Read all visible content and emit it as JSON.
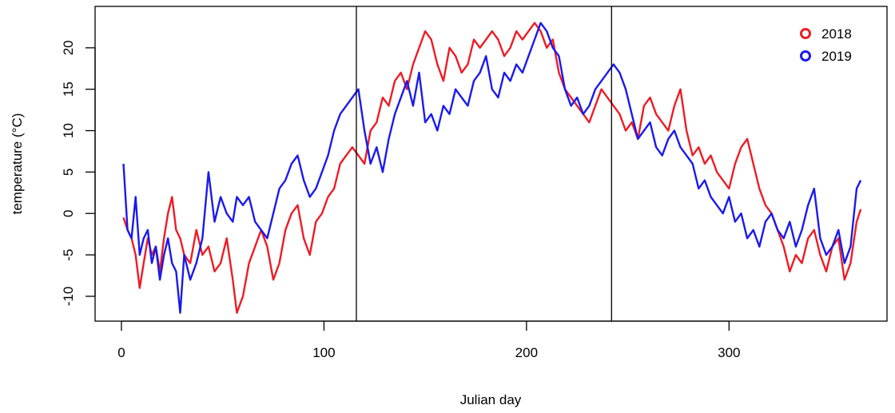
{
  "chart_data": {
    "type": "line",
    "xlabel": "Julian day",
    "ylabel": "temperature (°C)",
    "xlim": [
      -13,
      378
    ],
    "ylim": [
      -13,
      25
    ],
    "x_ticks": [
      0,
      100,
      200,
      300
    ],
    "y_ticks": [
      -10,
      -5,
      0,
      5,
      10,
      15,
      20
    ],
    "vlines": [
      116,
      242
    ],
    "legend": {
      "position": "top-right",
      "style": "circle"
    },
    "series": [
      {
        "name": "2018",
        "color": "#ee1c25",
        "x": [
          1,
          3,
          5,
          7,
          9,
          11,
          13,
          15,
          17,
          19,
          21,
          23,
          25,
          27,
          29,
          31,
          34,
          37,
          40,
          43,
          46,
          49,
          52,
          55,
          57,
          60,
          63,
          66,
          69,
          72,
          75,
          78,
          81,
          84,
          87,
          90,
          93,
          96,
          99,
          102,
          105,
          108,
          111,
          114,
          117,
          120,
          123,
          126,
          129,
          132,
          135,
          138,
          141,
          144,
          147,
          150,
          153,
          156,
          159,
          162,
          165,
          168,
          171,
          174,
          177,
          180,
          183,
          186,
          189,
          192,
          195,
          198,
          201,
          204,
          207,
          210,
          213,
          216,
          219,
          222,
          225,
          228,
          231,
          234,
          237,
          240,
          243,
          246,
          249,
          252,
          255,
          258,
          261,
          264,
          267,
          270,
          273,
          276,
          279,
          282,
          285,
          288,
          291,
          294,
          297,
          300,
          303,
          306,
          309,
          312,
          315,
          318,
          321,
          324,
          327,
          330,
          333,
          336,
          339,
          342,
          345,
          348,
          351,
          354,
          357,
          360,
          363,
          365
        ],
        "y": [
          -0.5,
          -2,
          -3,
          -5,
          -9,
          -6,
          -3,
          -5,
          -4,
          -7,
          -3,
          0,
          2,
          -2,
          -3,
          -5,
          -6,
          -2,
          -5,
          -4,
          -7,
          -6,
          -3,
          -8,
          -12,
          -10,
          -6,
          -4,
          -2,
          -4,
          -8,
          -6,
          -2,
          0,
          1,
          -3,
          -5,
          -1,
          0,
          2,
          3,
          6,
          7,
          8,
          7,
          6,
          10,
          11,
          14,
          13,
          16,
          17,
          15,
          18,
          20,
          22,
          21,
          18,
          16,
          20,
          19,
          17,
          18,
          21,
          20,
          21,
          22,
          21,
          19,
          20,
          22,
          21,
          22,
          23,
          22,
          20,
          21,
          17,
          15,
          14,
          13,
          12,
          11,
          13,
          15,
          14,
          13,
          12,
          10,
          11,
          9,
          13,
          14,
          12,
          11,
          10,
          13,
          15,
          10,
          7,
          8,
          6,
          7,
          5,
          4,
          3,
          6,
          8,
          9,
          6,
          3,
          1,
          0,
          -2,
          -4,
          -7,
          -5,
          -6,
          -3,
          -2,
          -5,
          -7,
          -4,
          -3,
          -8,
          -6,
          -1,
          0.5
        ]
      },
      {
        "name": "2019",
        "color": "#1a1aee",
        "x": [
          1,
          3,
          5,
          7,
          9,
          11,
          13,
          15,
          17,
          19,
          21,
          23,
          25,
          27,
          29,
          31,
          34,
          37,
          40,
          43,
          46,
          49,
          52,
          55,
          57,
          60,
          63,
          66,
          69,
          72,
          75,
          78,
          81,
          84,
          87,
          90,
          93,
          96,
          99,
          102,
          105,
          108,
          111,
          114,
          117,
          120,
          123,
          126,
          129,
          132,
          135,
          138,
          141,
          144,
          147,
          150,
          153,
          156,
          159,
          162,
          165,
          168,
          171,
          174,
          177,
          180,
          183,
          186,
          189,
          192,
          195,
          198,
          201,
          204,
          207,
          210,
          213,
          216,
          219,
          222,
          225,
          228,
          231,
          234,
          237,
          240,
          243,
          246,
          249,
          252,
          255,
          258,
          261,
          264,
          267,
          270,
          273,
          276,
          279,
          282,
          285,
          288,
          291,
          294,
          297,
          300,
          303,
          306,
          309,
          312,
          315,
          318,
          321,
          324,
          327,
          330,
          333,
          336,
          339,
          342,
          345,
          348,
          351,
          354,
          357,
          360,
          363,
          365
        ],
        "y": [
          6,
          -2,
          -3,
          2,
          -5,
          -3,
          -2,
          -6,
          -4,
          -8,
          -5,
          -3,
          -6,
          -7,
          -12,
          -5,
          -8,
          -6,
          -3,
          5,
          -1,
          2,
          0,
          -1,
          2,
          1,
          2,
          -1,
          -2,
          -3,
          0,
          3,
          4,
          6,
          7,
          4,
          2,
          3,
          5,
          7,
          10,
          12,
          13,
          14,
          15,
          10,
          6,
          8,
          5,
          9,
          12,
          14,
          16,
          13,
          17,
          11,
          12,
          10,
          13,
          12,
          15,
          14,
          13,
          16,
          17,
          19,
          15,
          14,
          17,
          16,
          18,
          17,
          19,
          21,
          23,
          22,
          20,
          19,
          15,
          13,
          14,
          12,
          13,
          15,
          16,
          17,
          18,
          17,
          15,
          12,
          9,
          10,
          11,
          8,
          7,
          9,
          10,
          8,
          7,
          6,
          3,
          4,
          2,
          1,
          0,
          2,
          -1,
          0,
          -3,
          -2,
          -4,
          -1,
          0,
          -2,
          -3,
          -1,
          -4,
          -2,
          1,
          3,
          -3,
          -5,
          -4,
          -2,
          -6,
          -4,
          3,
          4
        ]
      }
    ]
  }
}
